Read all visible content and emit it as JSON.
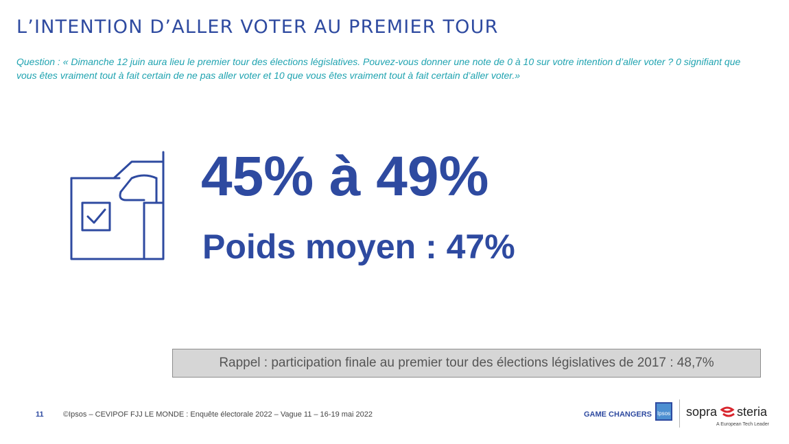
{
  "slide": {
    "title": "L’INTENTION D’ALLER VOTER AU PREMIER TOUR",
    "question": "Question : « Dimanche 12 juin aura lieu le premier tour des élections législatives. Pouvez-vous donner une note de 0 à 10 sur votre intention d’aller voter ? 0 signifiant que vous êtes vraiment tout à fait certain de ne pas aller voter et 10 que vous êtes vraiment tout à fait certain d’aller voter.»",
    "range_text": "45% à 49%",
    "average_text": "Poids moyen : 47%",
    "reminder": "Rappel : participation finale au premier tour des élections législatives de 2017 : 48,7%",
    "icon": "ballot-box-vote-icon"
  },
  "footer": {
    "page_number": "11",
    "source": "©Ipsos – CEVIPOF FJJ LE MONDE : Enquête électorale 2022 – Vague 11 – 16-19 mai 2022",
    "tagline": "GAME CHANGERS",
    "ipsos_logo_text": "Ipsos",
    "sopra_logo_left": "sopra",
    "sopra_logo_right": "steria",
    "sopra_tagline": "A European Tech Leader"
  },
  "colors": {
    "primary_blue": "#2e4aa0",
    "question_teal": "#1fa3b0",
    "reminder_bg": "#d6d6d6",
    "sopra_red": "#d8262e"
  }
}
